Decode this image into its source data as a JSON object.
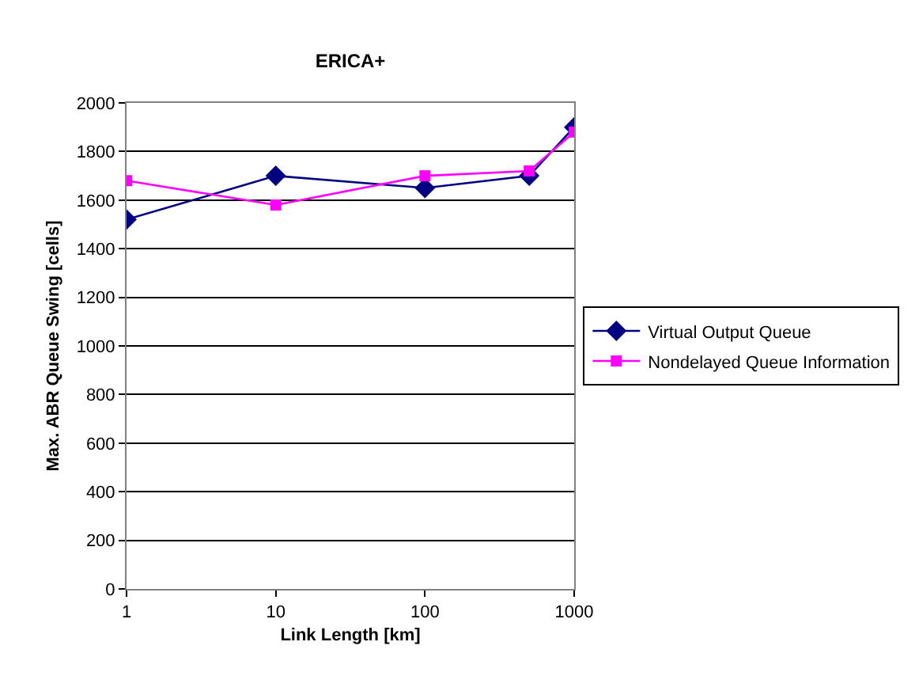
{
  "chart_data": {
    "type": "line",
    "title": "ERICA+",
    "xlabel": "Link Length [km]",
    "ylabel": "Max. ABR Queue Swing [cells]",
    "x": [
      1,
      10,
      100,
      500,
      1000
    ],
    "series": [
      {
        "name": "Virtual Output Queue",
        "color": "#000080",
        "values": [
          1520,
          1700,
          1650,
          1700,
          1900
        ],
        "marker": "diamond"
      },
      {
        "name": "Nondelayed Queue Information",
        "color": "#ff00ff",
        "values": [
          1680,
          1580,
          1700,
          1720,
          1880
        ],
        "marker": "square"
      }
    ],
    "log": "x",
    "xlim": [
      1,
      1000
    ],
    "xticks": [
      1,
      10,
      100,
      1000
    ],
    "ylim": [
      0,
      2000
    ],
    "yticks": [
      0,
      200,
      400,
      600,
      800,
      1000,
      1200,
      1400,
      1600,
      1800,
      2000
    ],
    "grid": "y",
    "legend": "right",
    "line_style": "solid"
  }
}
